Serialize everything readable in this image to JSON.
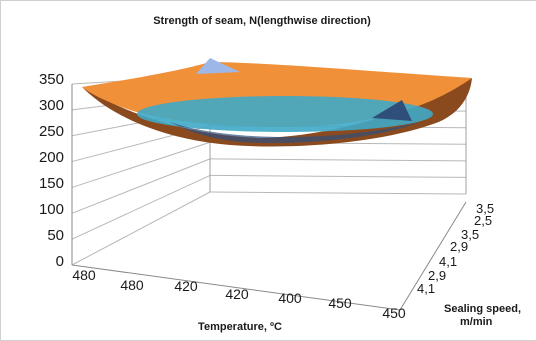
{
  "chart_data": {
    "type": "surface",
    "title": "Strength of seam, N(lengthwise direction)",
    "xlabel": "Temperature, ºC",
    "ylabel": "Sealing speed,",
    "ylabel_line2": "m/min",
    "zlim": [
      0,
      350
    ],
    "z_ticks": [
      "350",
      "300",
      "250",
      "200",
      "150",
      "100",
      "50",
      "0"
    ],
    "x_categories": [
      "480",
      "480",
      "420",
      "420",
      "400",
      "450",
      "450"
    ],
    "y_categories": [
      "3,5",
      "2,5",
      "3,5",
      "2,9",
      "4,1",
      "2,9",
      "4,1"
    ],
    "grid": true,
    "series_bands": [
      {
        "range": [
          0,
          50
        ],
        "color": "#4472C4"
      },
      {
        "range": [
          50,
          100
        ],
        "color": "#ED7D31"
      },
      {
        "range": [
          100,
          150
        ],
        "color": "#A5A5A5"
      },
      {
        "range": [
          150,
          200
        ],
        "color": "#FFC000"
      },
      {
        "range": [
          200,
          250
        ],
        "color": "#5B9BD5"
      },
      {
        "range": [
          250,
          300
        ],
        "color": "#70AD47"
      },
      {
        "range": [
          300,
          350
        ],
        "color": "#E07A2E"
      }
    ],
    "surface_color": "#F0913A",
    "surface_dark": "#8A4A1E",
    "inner_color": "#3FA9C7",
    "peak_color": "#9DB8E8",
    "shadow_color": "#2F4E7A"
  }
}
